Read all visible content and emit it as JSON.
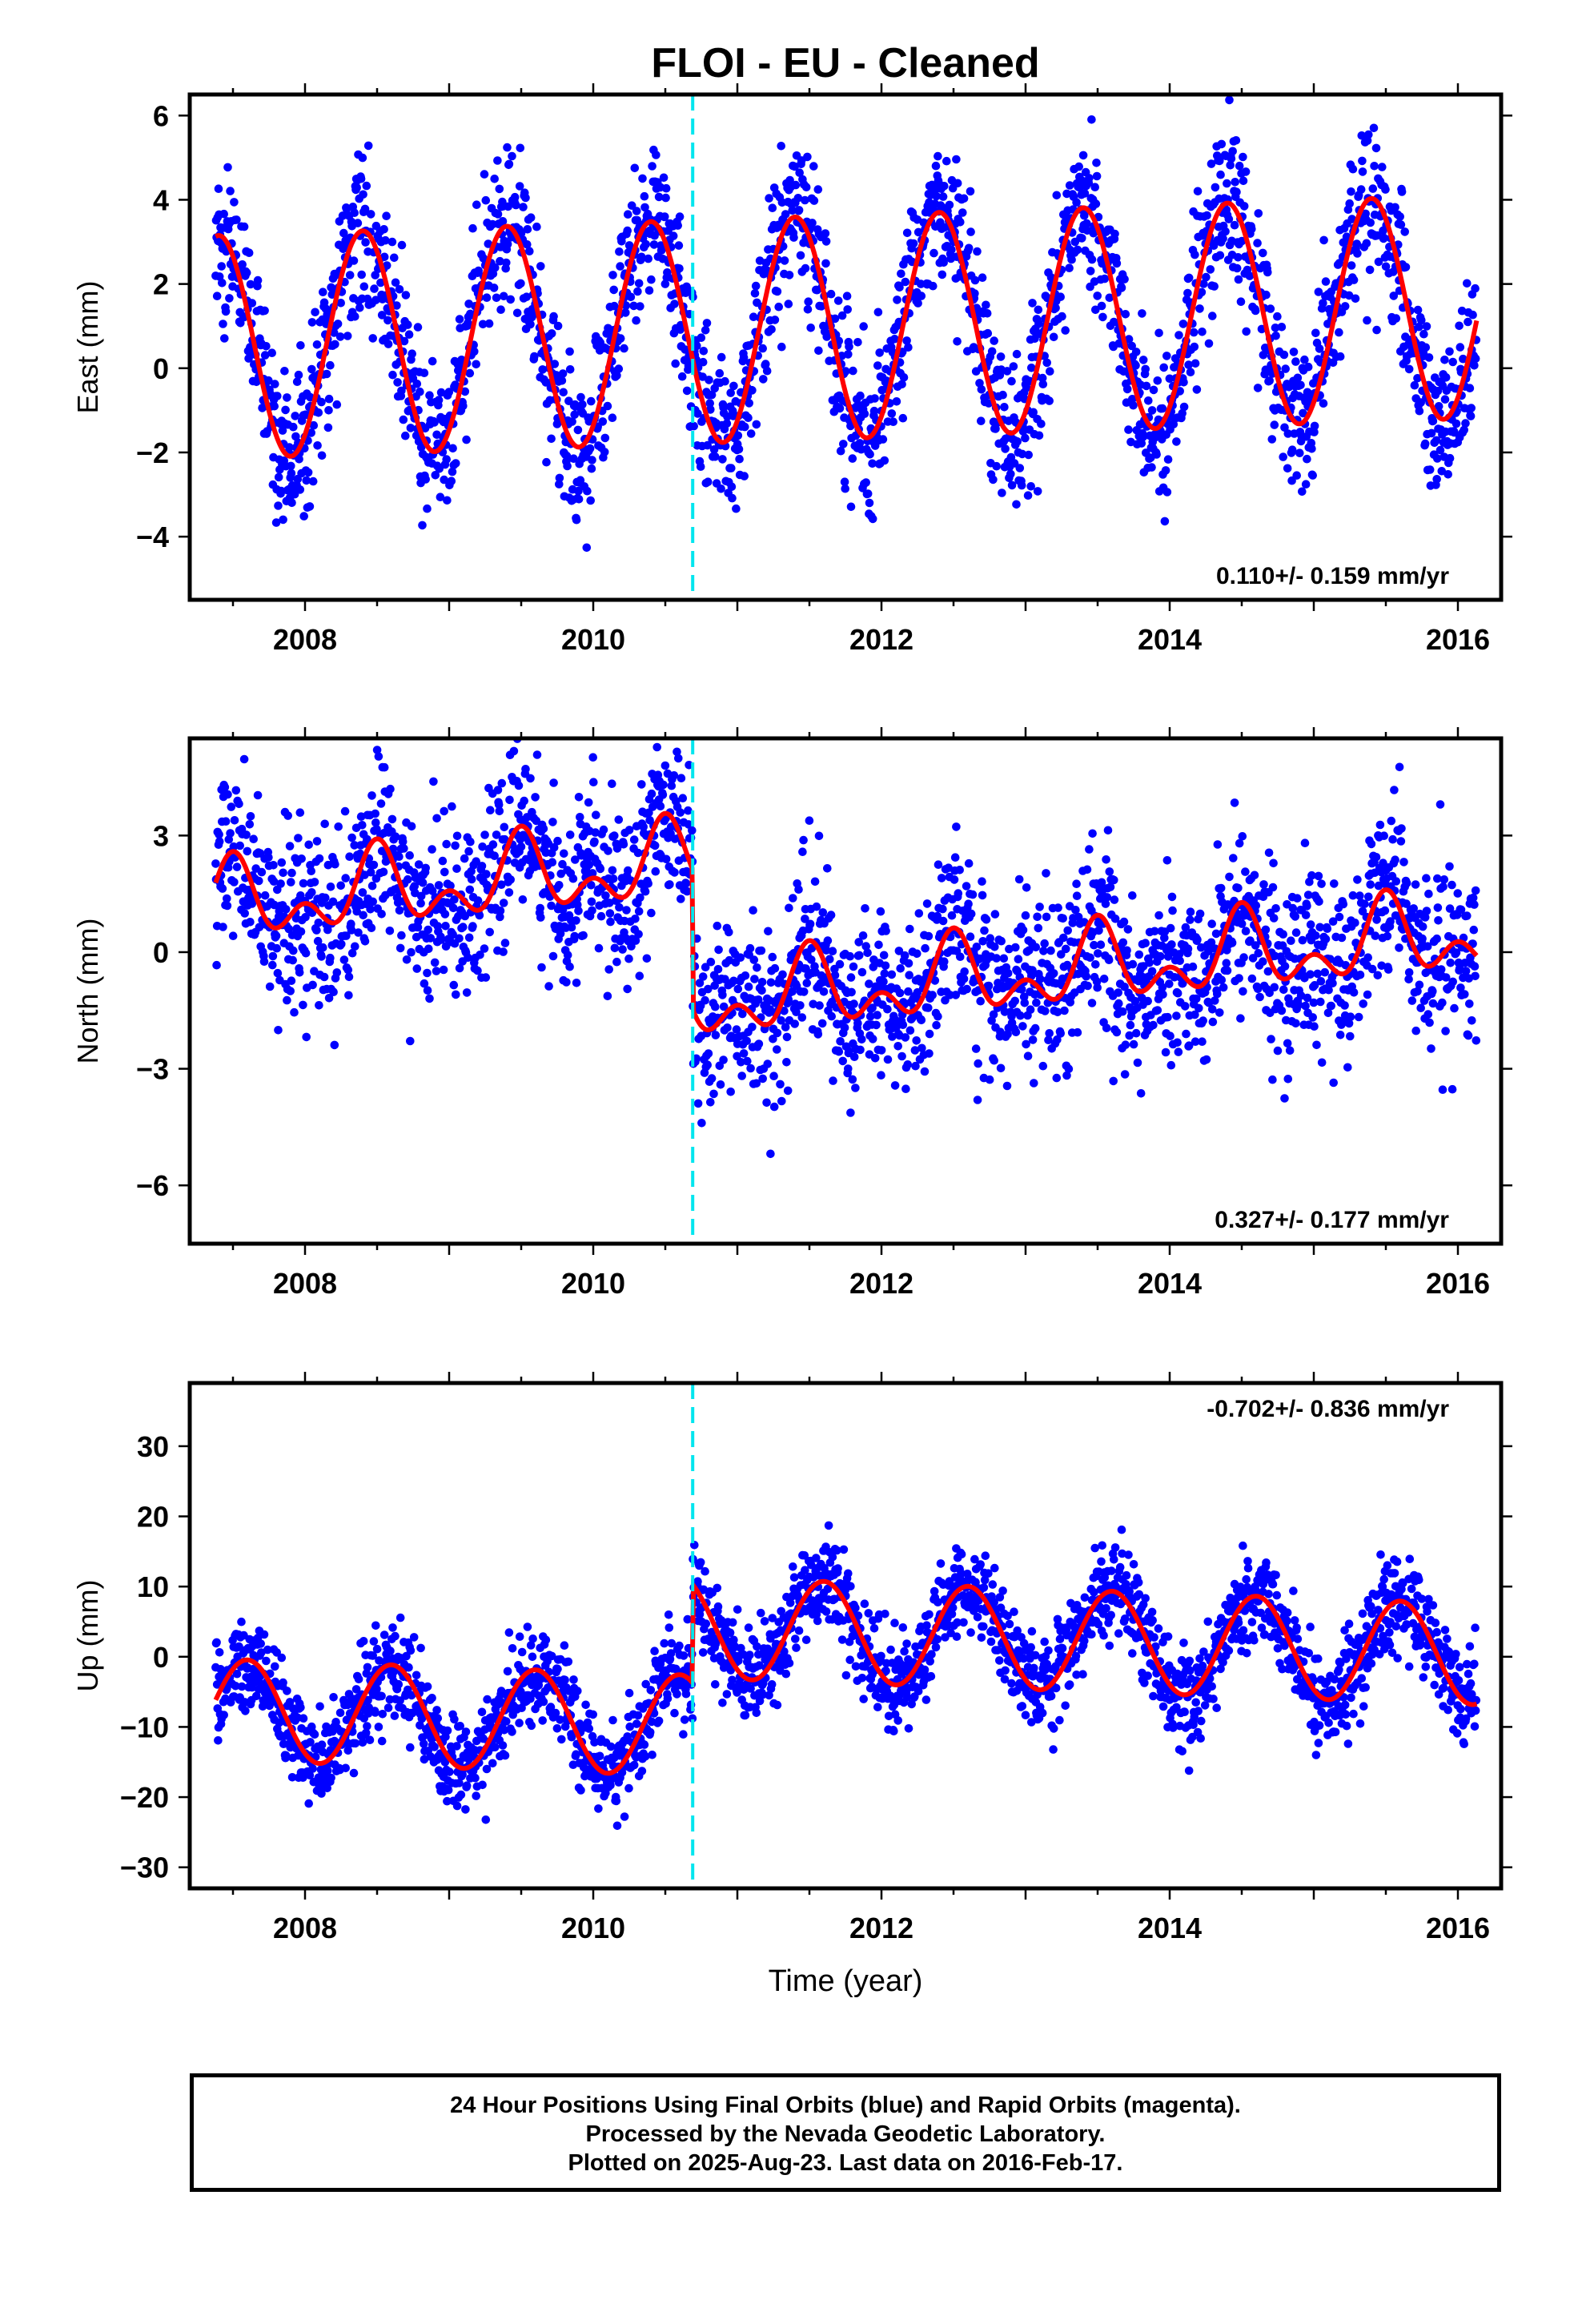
{
  "title": "FLOI  - EU - Cleaned",
  "footer": {
    "line1": "24 Hour Positions Using Final Orbits (blue) and Rapid Orbits (magenta).",
    "line2": "Processed by the Nevada Geodetic Laboratory.",
    "line3": "Plotted on 2025-Aug-23. Last data on 2016-Feb-17."
  },
  "colors": {
    "points": "#0000ff",
    "model": "#ff0000",
    "offset_line": "#00e5ee"
  },
  "chart_data": [
    {
      "type": "scatter",
      "ylabel": "East (mm)",
      "xlabel": "",
      "xlim": [
        2007.2,
        2016.3
      ],
      "ylim": [
        -5.5,
        6.5
      ],
      "yticks": [
        -4,
        -2,
        0,
        2,
        4,
        6
      ],
      "xticks": [
        2008,
        2010,
        2012,
        2014,
        2016
      ],
      "rate_label": "0.110+/- 0.159 mm/yr",
      "rate_position": "bottom-right",
      "offset_epoch": 2010.69,
      "data_range": [
        2007.38,
        2016.13
      ],
      "model": {
        "trend": 0.11,
        "base": 0.5,
        "step": 0.0,
        "amp": 2.65,
        "period": 1.0,
        "peak": 2007.4,
        "amp2": 0.0,
        "noise": 0.9
      }
    },
    {
      "type": "scatter",
      "ylabel": "North (mm)",
      "xlabel": "",
      "xlim": [
        2007.2,
        2016.3
      ],
      "ylim": [
        -7.5,
        5.5
      ],
      "yticks": [
        -6,
        -3,
        0,
        3
      ],
      "xticks": [
        2008,
        2010,
        2012,
        2014,
        2016
      ],
      "rate_label": "0.327+/- 0.177 mm/yr",
      "rate_position": "bottom-right",
      "offset_epoch": 2010.69,
      "data_range": [
        2007.38,
        2016.13
      ],
      "model": {
        "trend": 0.327,
        "base": 1.2,
        "step": -3.6,
        "amp": 0.75,
        "period": 1.0,
        "peak": 2007.5,
        "amp2": 0.6,
        "noise": 1.1
      }
    },
    {
      "type": "scatter",
      "ylabel": "Up (mm)",
      "xlabel": "Time (year)",
      "xlim": [
        2007.2,
        2016.3
      ],
      "ylim": [
        -33,
        39
      ],
      "yticks": [
        -30,
        -20,
        -10,
        0,
        10,
        20,
        30
      ],
      "xticks": [
        2008,
        2010,
        2012,
        2014,
        2016
      ],
      "rate_label": "-0.702+/- 0.836 mm/yr",
      "rate_position": "top-right",
      "offset_epoch": 2010.69,
      "data_range": [
        2007.38,
        2016.13
      ],
      "model": {
        "trend": -0.702,
        "base": -7.5,
        "step": 14.0,
        "amp": 7.2,
        "period": 1.0,
        "peak": 2007.6,
        "amp2": 0.0,
        "noise": 3.3
      }
    }
  ]
}
